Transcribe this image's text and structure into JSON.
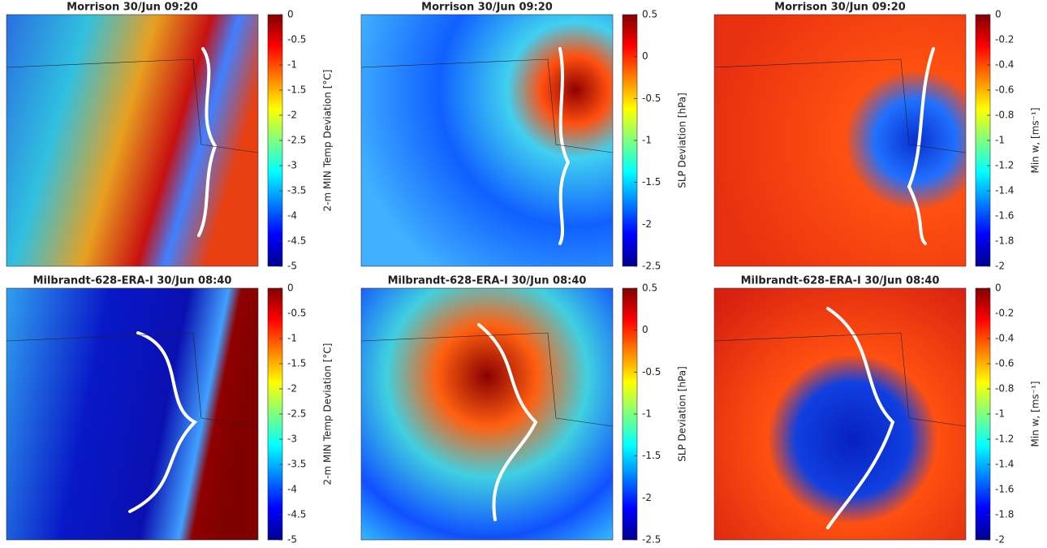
{
  "chart_data": [
    {
      "type": "heatmap",
      "title": "Morrison 30/Jun 09:20",
      "colorbar_label": "2-m MIN Temp Deviation [°C]",
      "colormap": "jet",
      "clim": [
        -5,
        0
      ],
      "cticks": [
        0,
        -0.5,
        -1,
        -1.5,
        -2,
        -2.5,
        -3,
        -3.5,
        -4,
        -4.5,
        -5
      ]
    },
    {
      "type": "heatmap",
      "title": "Morrison 30/Jun 09:20",
      "colorbar_label": "SLP Deviation [hPa]",
      "colormap": "jet",
      "clim": [
        -2.5,
        0.5
      ],
      "cticks": [
        0.5,
        0,
        -0.5,
        -1,
        -1.5,
        -2,
        -2.5
      ]
    },
    {
      "type": "heatmap",
      "title": "Morrison 30/Jun 09:20",
      "colorbar_label": "Min w, [ms⁻¹]",
      "colormap": "jet",
      "clim": [
        -2,
        0
      ],
      "cticks": [
        0,
        -0.2,
        -0.4,
        -0.6,
        -0.8,
        -1,
        -1.2,
        -1.4,
        -1.6,
        -1.8,
        -2
      ]
    },
    {
      "type": "heatmap",
      "title": "Milbrandt-628-ERA-I 30/Jun 08:40",
      "colorbar_label": "2-m MIN Temp Deviation [°C]",
      "colormap": "jet",
      "clim": [
        -5,
        0
      ],
      "cticks": [
        0,
        -0.5,
        -1,
        -1.5,
        -2,
        -2.5,
        -3,
        -3.5,
        -4,
        -4.5,
        -5
      ]
    },
    {
      "type": "heatmap",
      "title": "Milbrandt-628-ERA-I 30/Jun 08:40",
      "colorbar_label": "SLP Deviation [hPa]",
      "colormap": "jet",
      "clim": [
        -2.5,
        0.5
      ],
      "cticks": [
        0.5,
        0,
        -0.5,
        -1,
        -1.5,
        -2,
        -2.5
      ]
    },
    {
      "type": "heatmap",
      "title": "Milbrandt-628-ERA-I 30/Jun 08:40",
      "colorbar_label": "Min w, [ms⁻¹]",
      "colormap": "jet",
      "clim": [
        -2,
        0
      ],
      "cticks": [
        0,
        -0.2,
        -0.4,
        -0.6,
        -0.8,
        -1,
        -1.2,
        -1.4,
        -1.6,
        -1.8,
        -2
      ]
    }
  ]
}
